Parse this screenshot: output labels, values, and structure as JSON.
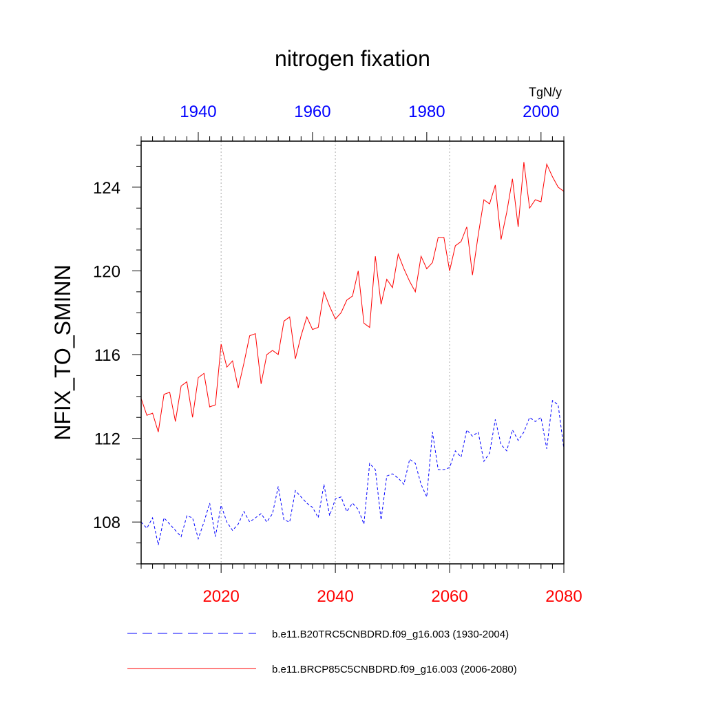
{
  "chart_data": {
    "type": "line",
    "title": "nitrogen fixation",
    "ylabel": "NFIX_TO_SMINN",
    "units": "TgN/y",
    "ylim": [
      106,
      126.2
    ],
    "yticks": [
      108,
      112,
      116,
      120,
      124
    ],
    "ytick_labels": [
      "108",
      "112",
      "116",
      "120",
      "124"
    ],
    "bottom_axis": {
      "color": "#ff0000",
      "range": [
        2006,
        2080
      ],
      "ticks": [
        2020,
        2040,
        2060,
        2080
      ],
      "tick_labels": [
        "2020",
        "2040",
        "2060",
        "2080"
      ]
    },
    "top_axis": {
      "color": "#0000ff",
      "range": [
        1930,
        2004
      ],
      "ticks": [
        1940,
        1960,
        1980,
        2000
      ],
      "tick_labels": [
        "1940",
        "1960",
        "1980",
        "2000"
      ]
    },
    "grid": "vertical dotted at bottom-axis major ticks",
    "legend_position": "bottom",
    "series": [
      {
        "name": "b.e11.B20TRC5CNBDRD.f09_g16.003 (1930-2004)",
        "color": "#0000ff",
        "style": "dashed",
        "axis": "top",
        "x": [
          1930,
          1931,
          1932,
          1933,
          1934,
          1935,
          1936,
          1937,
          1938,
          1939,
          1940,
          1941,
          1942,
          1943,
          1944,
          1945,
          1946,
          1947,
          1948,
          1949,
          1950,
          1951,
          1952,
          1953,
          1954,
          1955,
          1956,
          1957,
          1958,
          1959,
          1960,
          1961,
          1962,
          1963,
          1964,
          1965,
          1966,
          1967,
          1968,
          1969,
          1970,
          1971,
          1972,
          1973,
          1974,
          1975,
          1976,
          1977,
          1978,
          1979,
          1980,
          1981,
          1982,
          1983,
          1984,
          1985,
          1986,
          1987,
          1988,
          1989,
          1990,
          1991,
          1992,
          1993,
          1994,
          1995,
          1996,
          1997,
          1998,
          1999,
          2000,
          2001,
          2002,
          2003,
          2004
        ],
        "y": [
          108.0,
          107.7,
          108.2,
          106.9,
          108.2,
          107.9,
          107.6,
          107.3,
          108.3,
          108.2,
          107.2,
          108.0,
          108.9,
          107.3,
          108.8,
          108.0,
          107.6,
          107.9,
          108.5,
          108.0,
          108.2,
          108.4,
          108.0,
          108.4,
          109.7,
          108.1,
          108.0,
          109.5,
          109.2,
          108.9,
          108.7,
          108.2,
          109.8,
          108.3,
          109.1,
          109.2,
          108.5,
          108.9,
          108.6,
          107.9,
          110.8,
          110.5,
          108.1,
          110.2,
          110.3,
          110.1,
          109.8,
          111.0,
          110.8,
          109.8,
          109.2,
          112.3,
          110.5,
          110.5,
          110.6,
          111.4,
          111.1,
          112.4,
          112.1,
          112.3,
          110.9,
          111.3,
          112.9,
          111.7,
          111.4,
          112.4,
          111.9,
          112.3,
          113.0,
          112.8,
          113.0,
          111.5,
          113.8,
          113.6,
          111.5
        ]
      },
      {
        "name": "b.e11.BRCP85C5CNBDRD.f09_g16.003 (2006-2080)",
        "color": "#ff0000",
        "style": "solid",
        "axis": "bottom",
        "x": [
          2006,
          2007,
          2008,
          2009,
          2010,
          2011,
          2012,
          2013,
          2014,
          2015,
          2016,
          2017,
          2018,
          2019,
          2020,
          2021,
          2022,
          2023,
          2024,
          2025,
          2026,
          2027,
          2028,
          2029,
          2030,
          2031,
          2032,
          2033,
          2034,
          2035,
          2036,
          2037,
          2038,
          2039,
          2040,
          2041,
          2042,
          2043,
          2044,
          2045,
          2046,
          2047,
          2048,
          2049,
          2050,
          2051,
          2052,
          2053,
          2054,
          2055,
          2056,
          2057,
          2058,
          2059,
          2060,
          2061,
          2062,
          2063,
          2064,
          2065,
          2066,
          2067,
          2068,
          2069,
          2070,
          2071,
          2072,
          2073,
          2074,
          2075,
          2076,
          2077,
          2078,
          2079,
          2080
        ],
        "y": [
          113.9,
          113.1,
          113.2,
          112.3,
          114.1,
          114.2,
          112.8,
          114.5,
          114.7,
          113.0,
          114.9,
          115.1,
          113.5,
          113.6,
          116.5,
          115.4,
          115.7,
          114.4,
          115.6,
          116.9,
          117.0,
          114.6,
          116.0,
          116.2,
          116.0,
          117.6,
          117.8,
          115.8,
          116.9,
          117.8,
          117.2,
          117.3,
          119.0,
          118.3,
          117.7,
          118.0,
          118.6,
          118.8,
          120.0,
          117.5,
          117.3,
          120.7,
          118.4,
          119.6,
          119.2,
          120.8,
          120.1,
          119.5,
          119.0,
          120.7,
          120.1,
          120.4,
          121.6,
          121.6,
          120.0,
          121.2,
          121.4,
          122.1,
          119.8,
          121.7,
          123.4,
          123.2,
          124.1,
          121.5,
          122.8,
          124.4,
          122.1,
          125.2,
          123.0,
          123.4,
          123.3,
          125.1,
          124.5,
          124.0,
          123.8
        ]
      }
    ]
  }
}
